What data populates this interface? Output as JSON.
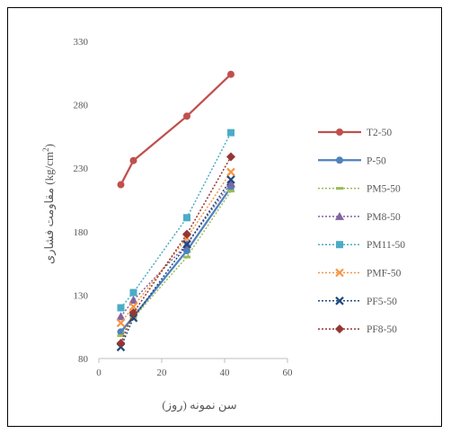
{
  "chart_data": {
    "type": "line",
    "title": "",
    "xlabel": "سن نمونه (روز)",
    "ylabel": "مقاومت فشاری (kg/cm²)",
    "ylabel_parts": {
      "text": "مقاومت فشاری (kg/cm",
      "sup": "2",
      "close": ")"
    },
    "xlim": [
      0,
      60
    ],
    "ylim": [
      80,
      330
    ],
    "xticks": [
      "0",
      "20",
      "40",
      "60"
    ],
    "yticks": [
      "80",
      "130",
      "180",
      "230",
      "280",
      "330"
    ],
    "grid": false,
    "legend_position": "right",
    "series": [
      {
        "name": "T2-50",
        "color": "#C0504D",
        "dash": "solid",
        "marker": "circle",
        "x": [
          7,
          11,
          28,
          42
        ],
        "y": [
          217,
          236,
          271,
          304
        ]
      },
      {
        "name": "P-50",
        "color": "#4F81BD",
        "dash": "solid",
        "marker": "circle",
        "x": [
          7,
          11,
          28,
          42
        ],
        "y": [
          101,
          113,
          165,
          215
        ]
      },
      {
        "name": "PM5-50",
        "color": "#9BBB59",
        "dash": "dotted",
        "marker": "dash",
        "x": [
          7,
          11,
          28,
          42
        ],
        "y": [
          98,
          112,
          160,
          212
        ]
      },
      {
        "name": "PM8-50",
        "color": "#8064A2",
        "dash": "dotted",
        "marker": "triangle",
        "x": [
          7,
          11,
          28,
          42
        ],
        "y": [
          113,
          126,
          170,
          218
        ]
      },
      {
        "name": "PM11-50",
        "color": "#4BACC6",
        "dash": "dotted",
        "marker": "square",
        "x": [
          7,
          11,
          28,
          42
        ],
        "y": [
          120,
          132,
          191,
          258
        ]
      },
      {
        "name": "PMF-50",
        "color": "#F79646",
        "dash": "dotted",
        "marker": "x",
        "x": [
          7,
          11,
          28,
          42
        ],
        "y": [
          108,
          121,
          175,
          227
        ]
      },
      {
        "name": "PF5-50",
        "color": "#1F497D",
        "dash": "dotted",
        "marker": "x",
        "x": [
          7,
          11,
          28,
          42
        ],
        "y": [
          89,
          112,
          170,
          221
        ]
      },
      {
        "name": "PF8-50",
        "color": "#943634",
        "dash": "dotted",
        "marker": "diamond",
        "x": [
          7,
          11,
          28,
          42
        ],
        "y": [
          92,
          116,
          178,
          239
        ]
      }
    ]
  }
}
